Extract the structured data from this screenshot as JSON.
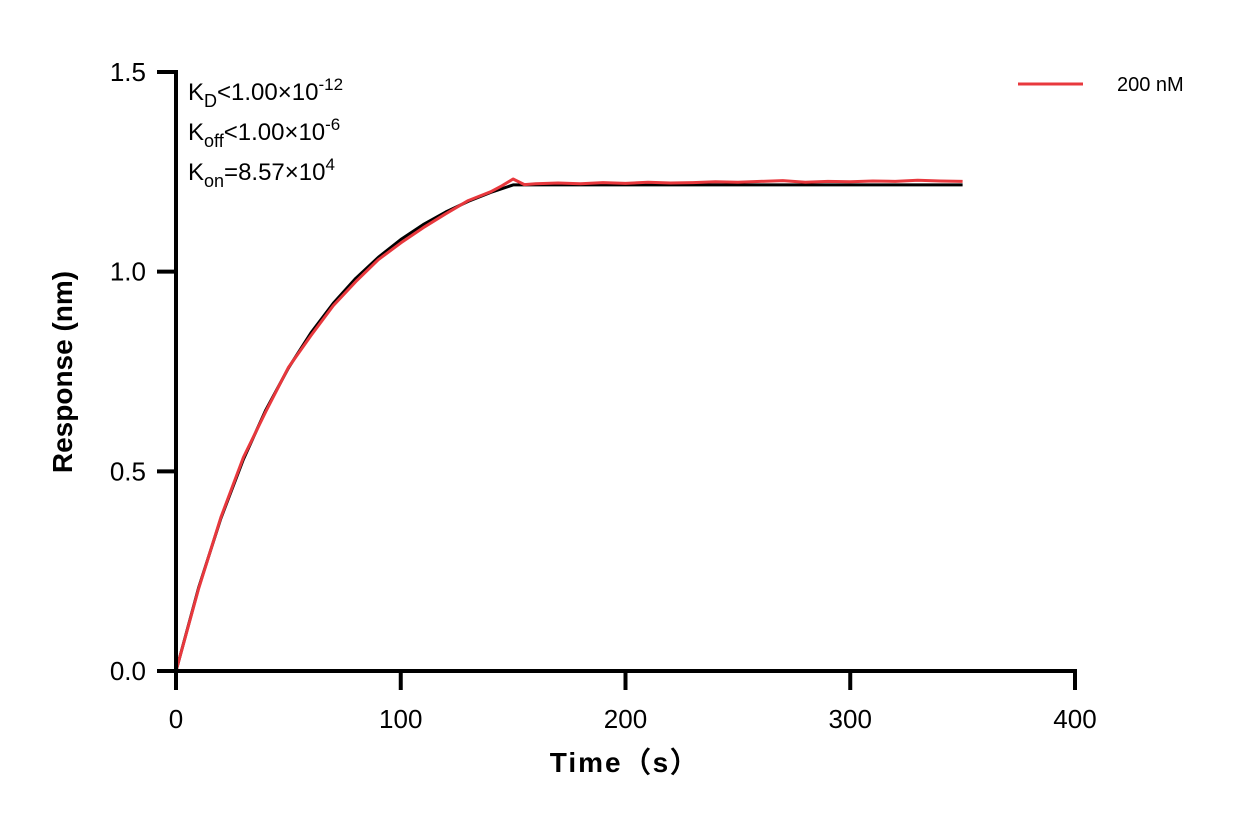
{
  "chart_data": {
    "type": "line",
    "title": "",
    "xlabel": "Time（s）",
    "ylabel": "Response (nm)",
    "xlim": [
      0,
      400
    ],
    "ylim": [
      0,
      1.5
    ],
    "xticks": [
      "0",
      "100",
      "200",
      "300",
      "400"
    ],
    "yticks": [
      "0.0",
      "0.5",
      "1.0",
      "1.5"
    ],
    "grid": false,
    "legend_position": "top-right",
    "annotations": [
      {
        "base": "K",
        "sub": "D",
        "text": "<1.00×10",
        "sup": "-12"
      },
      {
        "base": "K",
        "sub": "off",
        "text": "<1.00×10",
        "sup": "-6"
      },
      {
        "base": "K",
        "sub": "on",
        "text": "=8.57×10",
        "sup": "4"
      }
    ],
    "series": [
      {
        "name": "200 nM",
        "color": "#e8383d",
        "x": [
          0,
          10,
          20,
          30,
          40,
          50,
          60,
          70,
          80,
          90,
          100,
          110,
          120,
          130,
          140,
          145,
          150,
          155,
          160,
          170,
          180,
          190,
          200,
          210,
          220,
          230,
          240,
          250,
          260,
          270,
          280,
          290,
          300,
          310,
          320,
          330,
          340,
          350
        ],
        "y": [
          0,
          0.205,
          0.385,
          0.535,
          0.65,
          0.76,
          0.84,
          0.915,
          0.975,
          1.03,
          1.072,
          1.11,
          1.145,
          1.178,
          1.2,
          1.215,
          1.232,
          1.218,
          1.22,
          1.222,
          1.22,
          1.223,
          1.221,
          1.224,
          1.222,
          1.223,
          1.225,
          1.224,
          1.226,
          1.228,
          1.224,
          1.226,
          1.225,
          1.227,
          1.226,
          1.229,
          1.227,
          1.226
        ]
      },
      {
        "color": "#000000",
        "x": [
          0,
          10,
          20,
          30,
          40,
          50,
          60,
          70,
          80,
          90,
          100,
          110,
          120,
          130,
          140,
          150,
          350
        ],
        "y": [
          0,
          0.2076,
          0.3825,
          0.5298,
          0.654,
          0.7585,
          0.8467,
          0.9209,
          0.9835,
          1.0361,
          1.0805,
          1.1179,
          1.1494,
          1.1759,
          1.1983,
          1.2172,
          1.2172
        ]
      }
    ]
  }
}
